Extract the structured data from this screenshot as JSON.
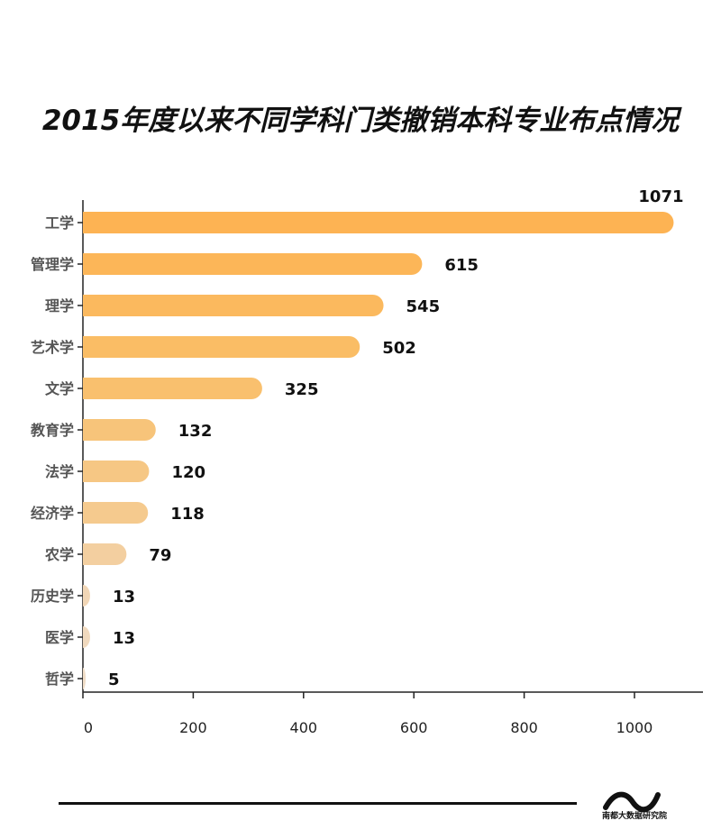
{
  "chart_data": {
    "type": "bar",
    "orientation": "horizontal",
    "title": "2015年度以来不同学科门类撤销本科专业布点情况",
    "categories": [
      "工学",
      "管理学",
      "理学",
      "艺术学",
      "文学",
      "教育学",
      "法学",
      "经济学",
      "农学",
      "历史学",
      "医学",
      "哲学"
    ],
    "values": [
      1071,
      615,
      545,
      502,
      325,
      132,
      120,
      118,
      79,
      13,
      13,
      5
    ],
    "xlim": [
      0,
      1120
    ],
    "xticks": [
      0,
      200,
      400,
      600,
      800,
      1000
    ],
    "xtick_labels": [
      "0",
      "200",
      "400",
      "600",
      "800",
      "1000"
    ],
    "grid": false,
    "colors": [
      "#FDB353",
      "#FCB658",
      "#FBB95E",
      "#FABD65",
      "#F9C06E",
      "#F7C47A",
      "#F6C784",
      "#F5CA8E",
      "#F3CFA0",
      "#F1D6B6",
      "#F0D9BE",
      "#EFDCC6"
    ]
  },
  "footer": {
    "brand_text": "南都大数据研究院",
    "logo_icon": "nandu-wave-logo-icon"
  }
}
